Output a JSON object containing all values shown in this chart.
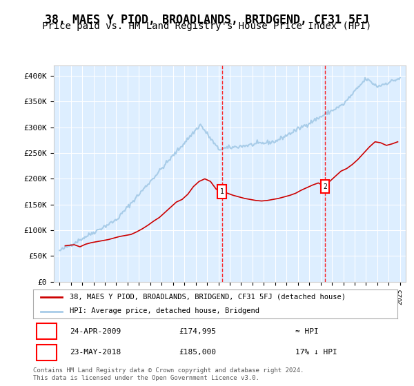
{
  "title": "38, MAES Y PIOD, BROADLANDS, BRIDGEND, CF31 5FJ",
  "subtitle": "Price paid vs. HM Land Registry's House Price Index (HPI)",
  "title_fontsize": 12,
  "subtitle_fontsize": 10,
  "ylabel_ticks": [
    "£0",
    "£50K",
    "£100K",
    "£150K",
    "£200K",
    "£250K",
    "£300K",
    "£350K",
    "£400K"
  ],
  "ytick_values": [
    0,
    50000,
    100000,
    150000,
    200000,
    250000,
    300000,
    350000,
    400000
  ],
  "ylim": [
    0,
    420000
  ],
  "xlim_start": 1994.5,
  "xlim_end": 2025.5,
  "xticks": [
    1995,
    1996,
    1997,
    1998,
    1999,
    2000,
    2001,
    2002,
    2003,
    2004,
    2005,
    2006,
    2007,
    2008,
    2009,
    2010,
    2011,
    2012,
    2013,
    2014,
    2015,
    2016,
    2017,
    2018,
    2019,
    2020,
    2021,
    2022,
    2023,
    2024,
    2025
  ],
  "hpi_color": "#a8cce8",
  "property_color": "#cc0000",
  "marker1_x": 2009.31,
  "marker1_y": 174995,
  "marker2_x": 2018.39,
  "marker2_y": 185000,
  "legend_property": "38, MAES Y PIOD, BROADLANDS, BRIDGEND, CF31 5FJ (detached house)",
  "legend_hpi": "HPI: Average price, detached house, Bridgend",
  "annotation1_date": "24-APR-2009",
  "annotation1_price": "£174,995",
  "annotation1_hpi": "≈ HPI",
  "annotation2_date": "23-MAY-2018",
  "annotation2_price": "£185,000",
  "annotation2_hpi": "17% ↓ HPI",
  "footer": "Contains HM Land Registry data © Crown copyright and database right 2024.\nThis data is licensed under the Open Government Licence v3.0.",
  "background_color": "#ddeeff"
}
